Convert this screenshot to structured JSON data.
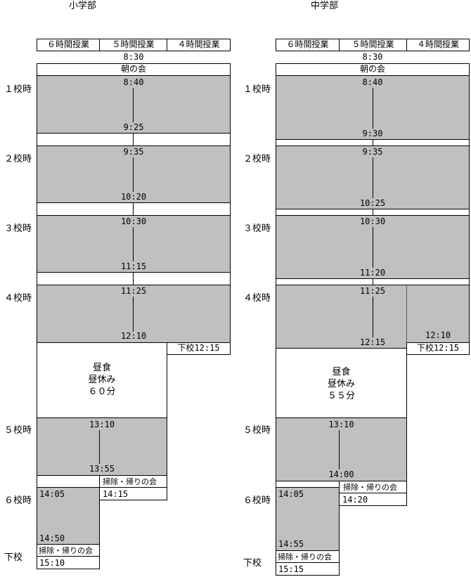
{
  "elementary": {
    "title": "小学部",
    "headers": [
      "６時間授業",
      "５時間授業",
      "４時間授業"
    ],
    "start_time": "8:30",
    "morning_meeting": "朝の会",
    "periods": [
      {
        "label": "１校時",
        "start": "8:40",
        "end": "9:25"
      },
      {
        "label": "２校時",
        "start": "9:35",
        "end": "10:20"
      },
      {
        "label": "３校時",
        "start": "10:30",
        "end": "11:15"
      },
      {
        "label": "４校時",
        "start": "11:25",
        "end": "12:10"
      },
      {
        "label": "５校時",
        "start": "13:10",
        "end": "13:55"
      },
      {
        "label": "６校時",
        "start": "14:05",
        "end": "14:50"
      }
    ],
    "dismiss_4": "下校12:15",
    "lunch": [
      "昼食",
      "昼休み",
      "６０分"
    ],
    "cleaning": "掃除・帰りの会",
    "cleaning_end_5": "14:15",
    "cleaning_end_6": "15:10",
    "dismiss_label": "下校"
  },
  "junior_high": {
    "title": "中学部",
    "headers": [
      "６時間授業",
      "５時間授業",
      "４時間授業"
    ],
    "start_time": "8:30",
    "morning_meeting": "朝の会",
    "periods": [
      {
        "label": "１校時",
        "start": "8:40",
        "end": "9:30"
      },
      {
        "label": "２校時",
        "start": "9:35",
        "end": "10:25"
      },
      {
        "label": "３校時",
        "start": "10:30",
        "end": "11:20"
      },
      {
        "label": "４校時",
        "start": "11:25",
        "end": "12:15"
      },
      {
        "label": "５校時",
        "start": "13:10",
        "end": "14:00"
      },
      {
        "label": "６校時",
        "start": "14:05",
        "end": "14:55"
      }
    ],
    "end_4_only": "12:10",
    "dismiss_4": "下校12:15",
    "lunch": [
      "昼食",
      "昼休み",
      "５５分"
    ],
    "cleaning": "掃除・帰りの会",
    "cleaning_end_5": "14:20",
    "cleaning_end_6": "15:15",
    "dismiss_label": "下校"
  }
}
